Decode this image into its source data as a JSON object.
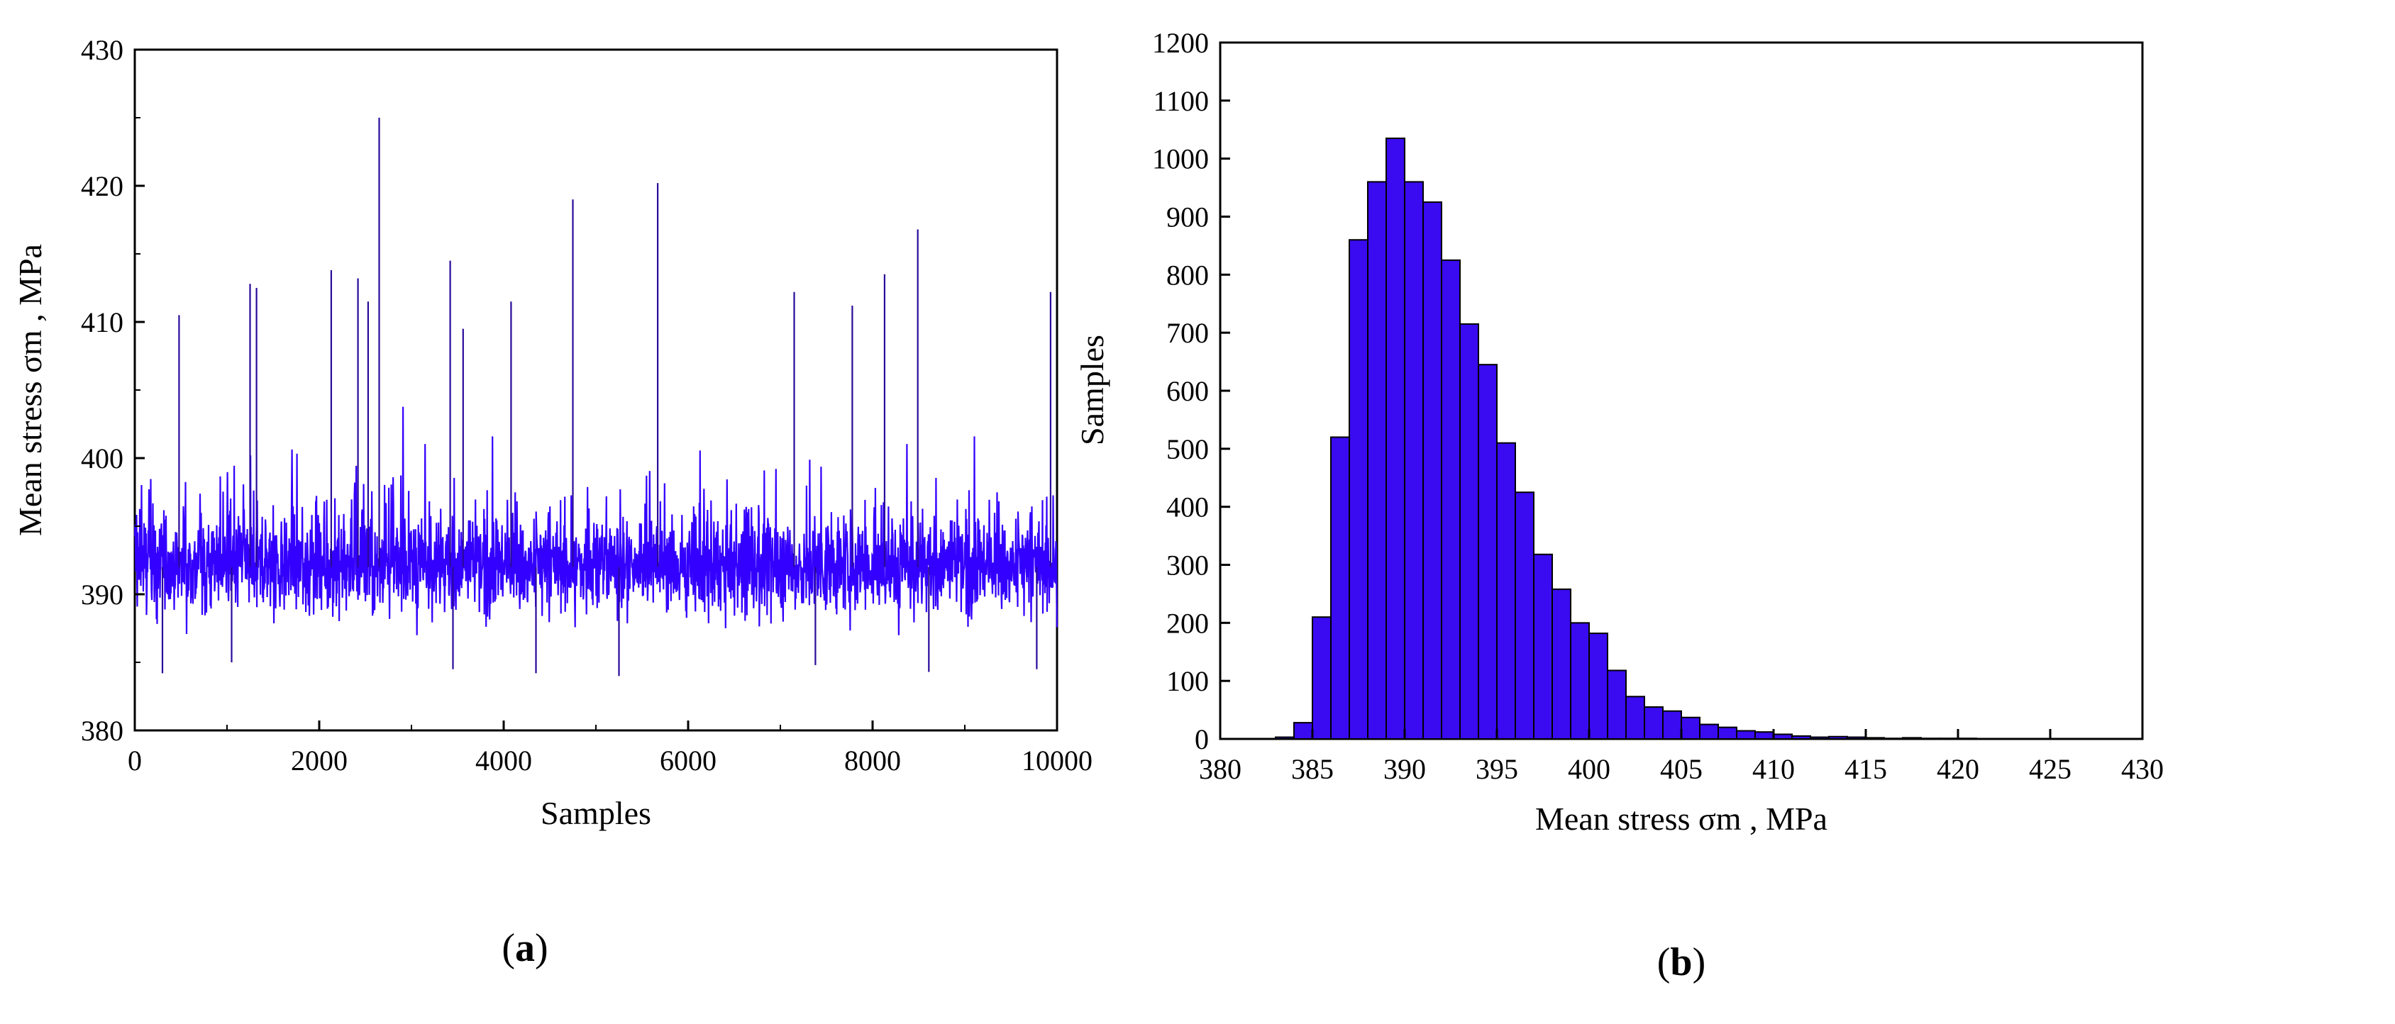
{
  "colors": {
    "series_a": "#3300ff",
    "series_a_dark": "#2a0a9a",
    "bar_fill": "#3a0af0",
    "bar_edge": "#000000",
    "axis": "#000000"
  },
  "chart_data": [
    {
      "type": "line",
      "panel_label": "(a)",
      "panel_letter": "a",
      "xlabel": "Samples",
      "ylabel": "Mean stress σm , MPa",
      "xlim": [
        0,
        10000
      ],
      "ylim": [
        380,
        430
      ],
      "xticks": [
        "0",
        "2000",
        "4000",
        "6000",
        "8000",
        "10000"
      ],
      "yticks": [
        "380",
        "390",
        "400",
        "410",
        "420",
        "430"
      ],
      "series": [
        {
          "summary": {
            "n": 10000,
            "mean": 392,
            "typical_min": 386,
            "typical_max": 404
          }
        }
      ],
      "peaks": [
        {
          "x": 480,
          "y": 410.5
        },
        {
          "x": 1250,
          "y": 412.8
        },
        {
          "x": 1320,
          "y": 412.5
        },
        {
          "x": 2130,
          "y": 413.8
        },
        {
          "x": 2420,
          "y": 413.2
        },
        {
          "x": 2530,
          "y": 411.5
        },
        {
          "x": 2650,
          "y": 425
        },
        {
          "x": 3420,
          "y": 414.5
        },
        {
          "x": 3560,
          "y": 409.5
        },
        {
          "x": 4080,
          "y": 411.5
        },
        {
          "x": 4750,
          "y": 419
        },
        {
          "x": 5670,
          "y": 420.2
        },
        {
          "x": 7150,
          "y": 412.2
        },
        {
          "x": 7780,
          "y": 411.2
        },
        {
          "x": 8130,
          "y": 413.5
        },
        {
          "x": 8490,
          "y": 416.8
        },
        {
          "x": 9930,
          "y": 412.2
        }
      ],
      "troughs": [
        {
          "x": 300,
          "y": 384.2
        },
        {
          "x": 1050,
          "y": 385
        },
        {
          "x": 3450,
          "y": 384.5
        },
        {
          "x": 4350,
          "y": 384.2
        },
        {
          "x": 5250,
          "y": 384
        },
        {
          "x": 7380,
          "y": 384.8
        },
        {
          "x": 8610,
          "y": 384.3
        },
        {
          "x": 9780,
          "y": 384.5
        }
      ]
    },
    {
      "type": "bar",
      "panel_label": "(b)",
      "panel_letter": "b",
      "xlabel": "Mean stress σm , MPa",
      "ylabel": "Samples",
      "xlim": [
        380,
        430
      ],
      "ylim": [
        0,
        1200
      ],
      "xticks": [
        "380",
        "385",
        "390",
        "395",
        "400",
        "405",
        "410",
        "415",
        "420",
        "425",
        "430"
      ],
      "yticks": [
        "0",
        "100",
        "200",
        "300",
        "400",
        "500",
        "600",
        "700",
        "800",
        "900",
        "1000",
        "1100",
        "1200"
      ],
      "bin_width": 1,
      "bin_starts": [
        383,
        384,
        385,
        386,
        387,
        388,
        389,
        390,
        391,
        392,
        393,
        394,
        395,
        396,
        397,
        398,
        399,
        400,
        401,
        402,
        403,
        404,
        405,
        406,
        407,
        408,
        409,
        410,
        411,
        412,
        413,
        414,
        415,
        416,
        417,
        418,
        419,
        420,
        421,
        422,
        423,
        424
      ],
      "values": [
        3,
        28,
        210,
        520,
        860,
        960,
        1035,
        960,
        925,
        825,
        715,
        645,
        510,
        425,
        318,
        258,
        200,
        182,
        118,
        73,
        55,
        48,
        37,
        25,
        20,
        14,
        12,
        8,
        5,
        3,
        4,
        3,
        2,
        1,
        2,
        1,
        1,
        1,
        0,
        0,
        0,
        0
      ]
    }
  ]
}
